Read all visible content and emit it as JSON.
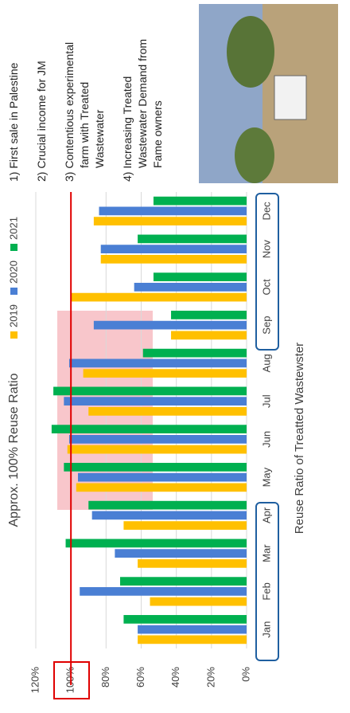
{
  "chart_data": {
    "type": "bar",
    "title": "Approx. 100% Reuse Ratio",
    "x_label": "Reuse Ratio of Treatted Wastewster",
    "categories": [
      "Jan",
      "Feb",
      "Mar",
      "Apr",
      "May",
      "Jun",
      "Jul",
      "Aug",
      "Sep",
      "Oct",
      "Nov",
      "Dec"
    ],
    "series": [
      {
        "name": "2019",
        "color": "#ffc000",
        "values": [
          62,
          55,
          62,
          70,
          97,
          102,
          90,
          93,
          43,
          100,
          83,
          87
        ]
      },
      {
        "name": "2020",
        "color": "#4a7fd4",
        "values": [
          62,
          95,
          75,
          88,
          96,
          101,
          104,
          101,
          87,
          64,
          83,
          84
        ]
      },
      {
        "name": "2021",
        "color": "#00b050",
        "values": [
          70,
          72,
          103,
          90,
          104,
          111,
          110,
          59,
          43,
          53,
          62,
          53
        ]
      }
    ],
    "ylim": [
      0,
      120
    ],
    "yticks": [
      {
        "value": 0,
        "label": "0%"
      },
      {
        "value": 20,
        "label": "20%"
      },
      {
        "value": 40,
        "label": "40%"
      },
      {
        "value": 60,
        "label": "60%"
      },
      {
        "value": 80,
        "label": "80%"
      },
      {
        "value": 100,
        "label": "100%"
      },
      {
        "value": 120,
        "label": "120%"
      }
    ],
    "reference_line": 100,
    "reference_color": "#e00000",
    "legend": "top"
  },
  "notes": [
    [
      "1) First sale in Palestine"
    ],
    [
      "2) Crucial income for JM"
    ],
    [
      "3) Contentious experimental",
      "farm with Treated",
      "Wastewater"
    ],
    [
      "4) Increasing Treated",
      "Wastewater Demand from",
      "Fame owners"
    ]
  ]
}
